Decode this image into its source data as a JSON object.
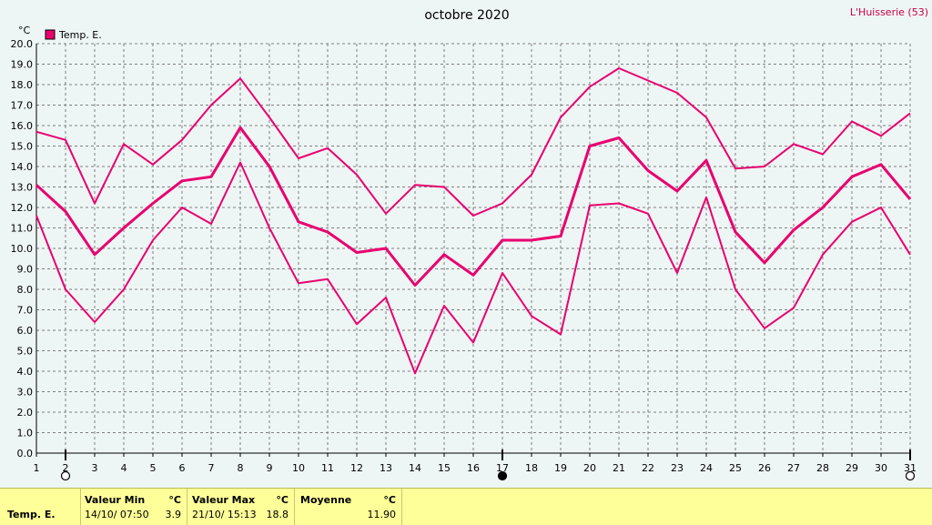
{
  "station": "L'Huisserie (53)",
  "chart_data": {
    "type": "line",
    "title": "octobre 2020",
    "unit": "°C",
    "legend": {
      "label": "Temp. E.",
      "color": "#e8006e",
      "placement": "top-left"
    },
    "ylim": [
      0,
      20
    ],
    "yticks": [
      "0.0",
      "1.0",
      "2.0",
      "3.0",
      "4.0",
      "5.0",
      "6.0",
      "7.0",
      "8.0",
      "9.0",
      "10.0",
      "11.0",
      "12.0",
      "13.0",
      "14.0",
      "15.0",
      "16.0",
      "17.0",
      "18.0",
      "19.0",
      "20.0"
    ],
    "x": [
      1,
      2,
      3,
      4,
      5,
      6,
      7,
      8,
      9,
      10,
      11,
      12,
      13,
      14,
      15,
      16,
      17,
      18,
      19,
      20,
      21,
      22,
      23,
      24,
      25,
      26,
      27,
      28,
      29,
      30,
      31
    ],
    "xlabels": [
      "1",
      "2",
      "3",
      "4",
      "5",
      "6",
      "7",
      "8",
      "9",
      "10",
      "11",
      "12",
      "13",
      "14",
      "15",
      "16",
      "17",
      "18",
      "19",
      "20",
      "21",
      "22",
      "23",
      "24",
      "25",
      "26",
      "27",
      "28",
      "29",
      "30",
      "31"
    ],
    "grid": true,
    "series": [
      {
        "values": [
          15.7,
          15.3,
          12.2,
          15.1,
          14.1,
          15.3,
          17.0,
          18.3,
          16.4,
          14.4,
          14.9,
          13.6,
          11.7,
          13.1,
          13.0,
          11.6,
          12.2,
          13.6,
          16.4,
          17.9,
          18.8,
          18.2,
          17.6,
          16.4,
          13.9,
          14.0,
          15.1,
          14.6,
          16.2,
          15.5,
          16.6
        ],
        "color": "#e8006e",
        "width": 2
      },
      {
        "values": [
          13.1,
          11.8,
          9.7,
          11.0,
          12.2,
          13.3,
          13.5,
          15.9,
          14.0,
          11.3,
          10.8,
          9.8,
          10.0,
          8.2,
          9.7,
          8.7,
          10.4,
          10.4,
          10.6,
          15.0,
          15.4,
          13.8,
          12.8,
          14.3,
          10.8,
          9.3,
          10.9,
          12.0,
          13.5,
          14.1,
          12.4
        ],
        "color": "#e8006e",
        "width": 3
      },
      {
        "values": [
          11.6,
          8.0,
          6.4,
          8.0,
          10.4,
          12.0,
          11.2,
          14.2,
          11.0,
          8.3,
          8.5,
          6.3,
          7.6,
          3.9,
          7.2,
          5.4,
          8.8,
          6.7,
          5.8,
          12.1,
          12.2,
          11.7,
          8.8,
          12.5,
          8.0,
          6.1,
          7.1,
          9.7,
          11.3,
          12.0,
          9.7
        ],
        "color": "#e8006e",
        "width": 2
      }
    ],
    "markers": [
      {
        "x": 2,
        "type": "open-circle"
      },
      {
        "x": 17,
        "type": "filled-circle"
      },
      {
        "x": 31,
        "type": "open-circle"
      }
    ]
  },
  "footer": {
    "label": "Temp. E.",
    "min_title": "Valeur Min",
    "min_unit": "°C",
    "min_date": "14/10/  07:50",
    "min_value": "3.9",
    "max_title": "Valeur Max",
    "max_unit": "°C",
    "max_date": "21/10/  15:13",
    "max_value": "18.8",
    "avg_title": "Moyenne",
    "avg_unit": "°C",
    "avg_value": "11.90"
  }
}
